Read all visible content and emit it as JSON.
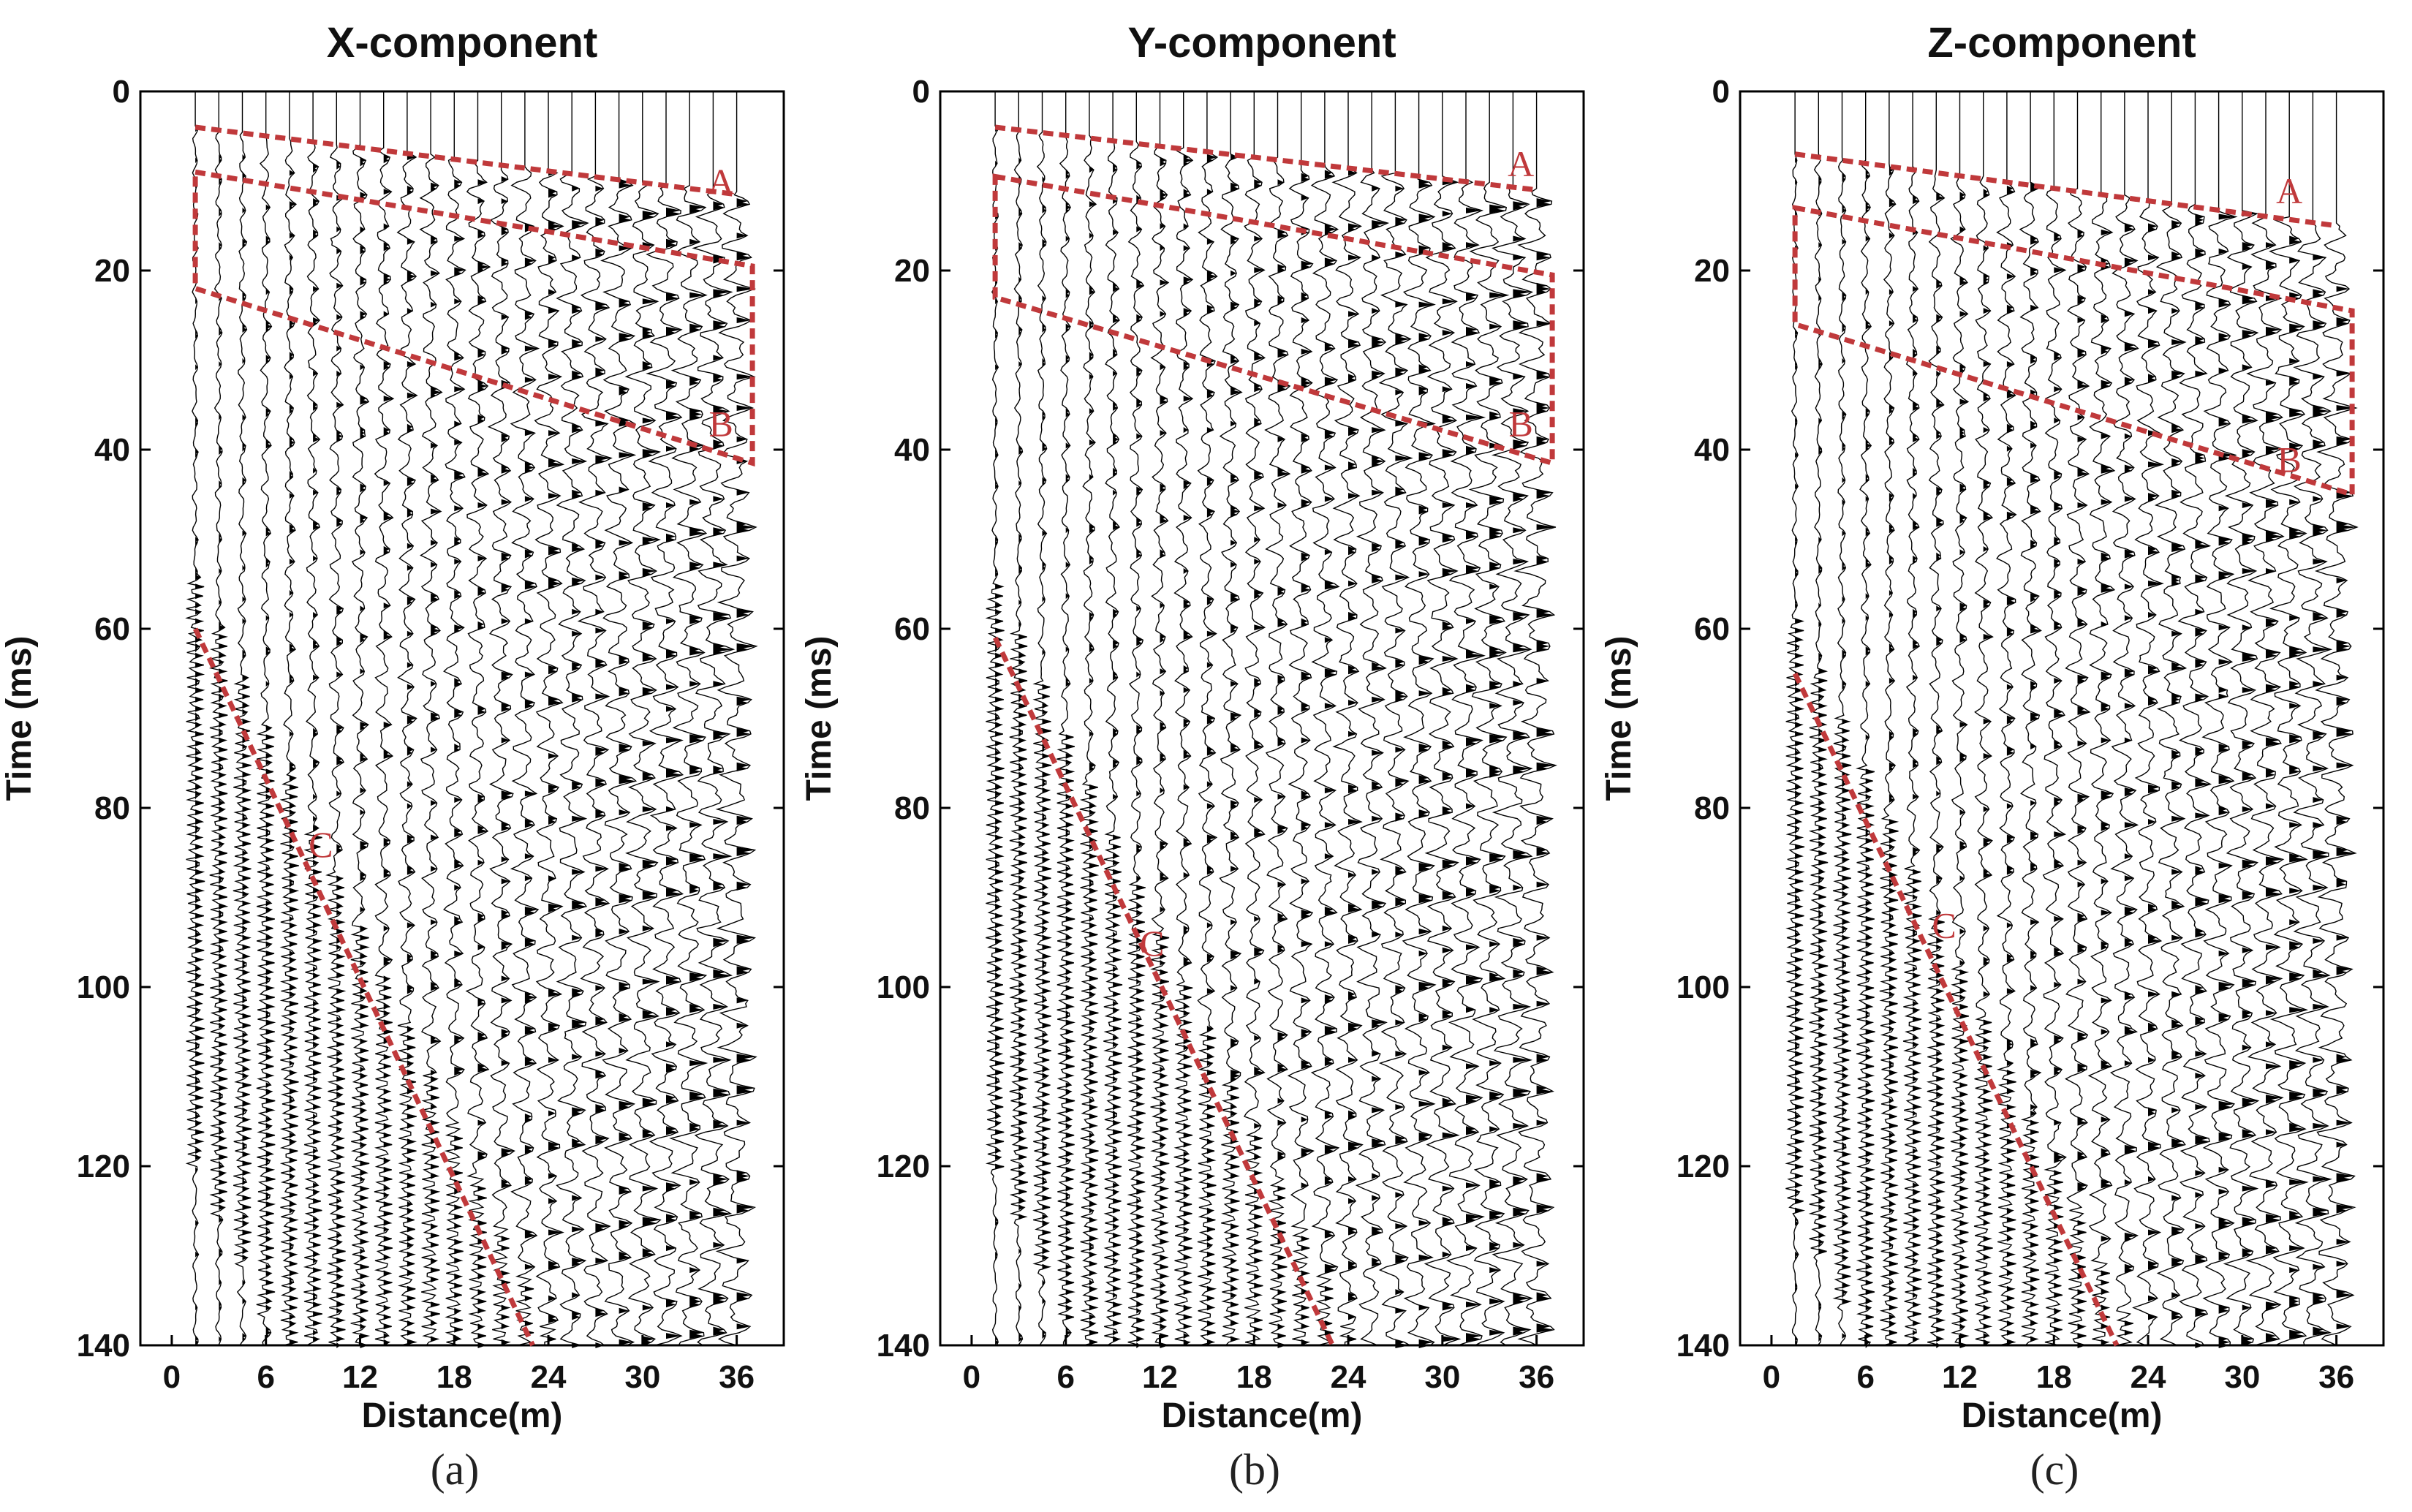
{
  "colors": {
    "annotation": "#c0393b",
    "trace": "#000000",
    "frame": "#000000"
  },
  "chart_data": [
    {
      "type": "seismic-wiggle",
      "title": "X-component",
      "xlabel": "Distance(m)",
      "ylabel": "Time (ms)",
      "xticks": [
        0,
        6,
        12,
        18,
        24,
        30,
        36
      ],
      "yticks": [
        0,
        20,
        40,
        60,
        80,
        100,
        120,
        140
      ],
      "xlim": [
        -2,
        39
      ],
      "ylim": [
        0,
        140
      ],
      "y_inverted": true,
      "trace_count": 24,
      "trace_spacing_m": 1.5,
      "first_trace_m": 1.5,
      "annotations": [
        {
          "label": "A",
          "type": "line",
          "x": [
            1.5,
            36
          ],
          "t": [
            4,
            11.5
          ]
        },
        {
          "label": "B",
          "type": "region",
          "x_range": [
            1.5,
            37
          ],
          "top_t": [
            9,
            19.5
          ],
          "bottom_t": [
            22,
            41.5
          ]
        },
        {
          "label": "C",
          "type": "line",
          "x": [
            1.5,
            23
          ],
          "t": [
            60,
            140
          ]
        }
      ],
      "annotation_label_t": {
        "A": 10,
        "B": 37,
        "C": 84
      },
      "annotation_label_x": {
        "A": 35,
        "B": 35,
        "C": 9.5
      },
      "sublabel": "(a)"
    },
    {
      "type": "seismic-wiggle",
      "title": "Y-component",
      "xlabel": "Distance(m)",
      "ylabel": "Time (ms)",
      "xticks": [
        0,
        6,
        12,
        18,
        24,
        30,
        36
      ],
      "yticks": [
        0,
        20,
        40,
        60,
        80,
        100,
        120,
        140
      ],
      "xlim": [
        -2,
        39
      ],
      "ylim": [
        0,
        140
      ],
      "y_inverted": true,
      "trace_count": 24,
      "trace_spacing_m": 1.5,
      "first_trace_m": 1.5,
      "annotations": [
        {
          "label": "A",
          "type": "line",
          "x": [
            1.5,
            36
          ],
          "t": [
            4,
            11
          ]
        },
        {
          "label": "B",
          "type": "region",
          "x_range": [
            1.5,
            37
          ],
          "top_t": [
            9.5,
            20.5
          ],
          "bottom_t": [
            23,
            41.5
          ]
        },
        {
          "label": "C",
          "type": "line",
          "x": [
            1.5,
            23
          ],
          "t": [
            61,
            140
          ]
        }
      ],
      "annotation_label_t": {
        "A": 8,
        "B": 37,
        "C": 95
      },
      "annotation_label_x": {
        "A": 35,
        "B": 35,
        "C": 11.5
      },
      "sublabel": "(b)"
    },
    {
      "type": "seismic-wiggle",
      "title": "Z-component",
      "xlabel": "Distance(m)",
      "ylabel": "Time (ms)",
      "xticks": [
        0,
        6,
        12,
        18,
        24,
        30,
        36
      ],
      "yticks": [
        0,
        20,
        40,
        60,
        80,
        100,
        120,
        140
      ],
      "xlim": [
        -2,
        39
      ],
      "ylim": [
        0,
        140
      ],
      "y_inverted": true,
      "trace_count": 24,
      "trace_spacing_m": 1.5,
      "first_trace_m": 1.5,
      "annotations": [
        {
          "label": "A",
          "type": "line",
          "x": [
            1.5,
            36
          ],
          "t": [
            7,
            15
          ]
        },
        {
          "label": "B",
          "type": "region",
          "x_range": [
            1.5,
            37
          ],
          "top_t": [
            13,
            24.5
          ],
          "bottom_t": [
            26,
            45
          ]
        },
        {
          "label": "C",
          "type": "line",
          "x": [
            1.5,
            22
          ],
          "t": [
            65,
            140
          ]
        }
      ],
      "annotation_label_t": {
        "A": 11,
        "B": 41,
        "C": 93
      },
      "annotation_label_x": {
        "A": 33,
        "B": 33,
        "C": 11
      },
      "sublabel": "(c)"
    }
  ]
}
